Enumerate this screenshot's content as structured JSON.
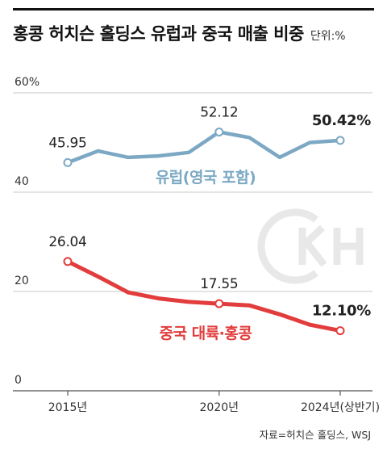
{
  "header": {
    "title": "홍콩 허치슨 홀딩스 유럽과 중국 매출 비중",
    "unit": "단위:%"
  },
  "source": "자료=허치슨 홀딩스, WSJ",
  "chart_data": {
    "type": "line",
    "x": [
      "2015",
      "2016",
      "2017",
      "2018",
      "2019",
      "2020",
      "2021",
      "2022",
      "2023",
      "2024H1"
    ],
    "x_tick_labels": [
      "2015년",
      "2020년",
      "2024년(상반기)"
    ],
    "x_tick_positions": [
      "2015",
      "2020",
      "2024H1"
    ],
    "y_tick_labels": [
      "60%",
      "40",
      "20",
      "0"
    ],
    "y_ticks": [
      60,
      40,
      20,
      0
    ],
    "ylim": [
      0,
      60
    ],
    "grid": true,
    "series": [
      {
        "name": "유럽(영국 포함)",
        "color": "#7ca8c4",
        "values": [
          45.95,
          48.3,
          47.0,
          47.3,
          48.0,
          52.12,
          51.0,
          47.0,
          50.0,
          50.42
        ],
        "labels": [
          {
            "index": 0,
            "text": "45.95"
          },
          {
            "index": 5,
            "text": "52.12"
          },
          {
            "index": 9,
            "text": "50.42%"
          }
        ]
      },
      {
        "name": "중국 대륙·홍콩",
        "color": "#e23c3c",
        "values": [
          26.04,
          23.0,
          19.8,
          18.6,
          17.9,
          17.55,
          17.2,
          15.4,
          13.3,
          12.1
        ],
        "labels": [
          {
            "index": 0,
            "text": "26.04"
          },
          {
            "index": 5,
            "text": "17.55"
          },
          {
            "index": 9,
            "text": "12.10%"
          }
        ]
      }
    ]
  }
}
